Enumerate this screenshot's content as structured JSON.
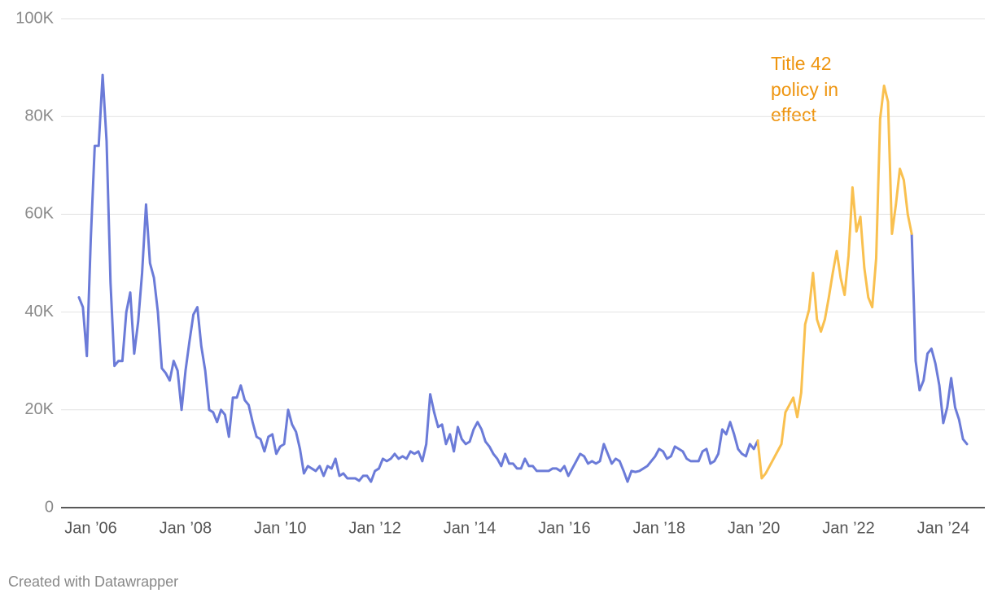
{
  "chart_data": {
    "type": "line",
    "annotation": [
      "Title 42",
      "policy in",
      "effect"
    ],
    "footer": "Created with Datawrapper",
    "x": [
      "2005-10",
      "2005-11",
      "2005-12",
      "2006-01",
      "2006-02",
      "2006-03",
      "2006-04",
      "2006-05",
      "2006-06",
      "2006-07",
      "2006-08",
      "2006-09",
      "2006-10",
      "2006-11",
      "2006-12",
      "2007-01",
      "2007-02",
      "2007-03",
      "2007-04",
      "2007-05",
      "2007-06",
      "2007-07",
      "2007-08",
      "2007-09",
      "2007-10",
      "2007-11",
      "2007-12",
      "2008-01",
      "2008-02",
      "2008-03",
      "2008-04",
      "2008-05",
      "2008-06",
      "2008-07",
      "2008-08",
      "2008-09",
      "2008-10",
      "2008-11",
      "2008-12",
      "2009-01",
      "2009-02",
      "2009-03",
      "2009-04",
      "2009-05",
      "2009-06",
      "2009-07",
      "2009-08",
      "2009-09",
      "2009-10",
      "2009-11",
      "2009-12",
      "2010-01",
      "2010-02",
      "2010-03",
      "2010-04",
      "2010-05",
      "2010-06",
      "2010-07",
      "2010-08",
      "2010-09",
      "2010-10",
      "2010-11",
      "2010-12",
      "2011-01",
      "2011-02",
      "2011-03",
      "2011-04",
      "2011-05",
      "2011-06",
      "2011-07",
      "2011-08",
      "2011-09",
      "2011-10",
      "2011-11",
      "2011-12",
      "2012-01",
      "2012-02",
      "2012-03",
      "2012-04",
      "2012-05",
      "2012-06",
      "2012-07",
      "2012-08",
      "2012-09",
      "2012-10",
      "2012-11",
      "2012-12",
      "2013-01",
      "2013-02",
      "2013-03",
      "2013-04",
      "2013-05",
      "2013-06",
      "2013-07",
      "2013-08",
      "2013-09",
      "2013-10",
      "2013-11",
      "2013-12",
      "2014-01",
      "2014-02",
      "2014-03",
      "2014-04",
      "2014-05",
      "2014-06",
      "2014-07",
      "2014-08",
      "2014-09",
      "2014-10",
      "2014-11",
      "2014-12",
      "2015-01",
      "2015-02",
      "2015-03",
      "2015-04",
      "2015-05",
      "2015-06",
      "2015-07",
      "2015-08",
      "2015-09",
      "2015-10",
      "2015-11",
      "2015-12",
      "2016-01",
      "2016-02",
      "2016-03",
      "2016-04",
      "2016-05",
      "2016-06",
      "2016-07",
      "2016-08",
      "2016-09",
      "2016-10",
      "2016-11",
      "2016-12",
      "2017-01",
      "2017-02",
      "2017-03",
      "2017-04",
      "2017-05",
      "2017-06",
      "2017-07",
      "2017-08",
      "2017-09",
      "2017-10",
      "2017-11",
      "2017-12",
      "2018-01",
      "2018-02",
      "2018-03",
      "2018-04",
      "2018-05",
      "2018-06",
      "2018-07",
      "2018-08",
      "2018-09",
      "2018-10",
      "2018-11",
      "2018-12",
      "2019-01",
      "2019-02",
      "2019-03",
      "2019-04",
      "2019-05",
      "2019-06",
      "2019-07",
      "2019-08",
      "2019-09",
      "2019-10",
      "2019-11",
      "2019-12",
      "2020-01",
      "2020-02",
      "2020-03",
      "2020-04",
      "2020-05",
      "2020-06",
      "2020-07",
      "2020-08",
      "2020-09",
      "2020-10",
      "2020-11",
      "2020-12",
      "2021-01",
      "2021-02",
      "2021-03",
      "2021-04",
      "2021-05",
      "2021-06",
      "2021-07",
      "2021-08",
      "2021-09",
      "2021-10",
      "2021-11",
      "2021-12",
      "2022-01",
      "2022-02",
      "2022-03",
      "2022-04",
      "2022-05",
      "2022-06",
      "2022-07",
      "2022-08",
      "2022-09",
      "2022-10",
      "2022-11",
      "2022-12",
      "2023-01",
      "2023-02",
      "2023-03",
      "2023-04",
      "2023-05",
      "2023-06",
      "2023-07",
      "2023-08",
      "2023-09",
      "2023-10",
      "2023-11",
      "2023-12",
      "2024-01",
      "2024-02",
      "2024-03",
      "2024-04",
      "2024-05",
      "2024-06",
      "2024-07"
    ],
    "series": [
      {
        "color": "#6b7bd8",
        "values": [
          43000,
          41000,
          31000,
          55000,
          74000,
          74000,
          88500,
          75000,
          46000,
          29000,
          30000,
          30000,
          40000,
          44000,
          31500,
          38000,
          48000,
          62000,
          50000,
          47000,
          40000,
          28500,
          27500,
          26000,
          30000,
          28000,
          20000,
          28000,
          34000,
          39500,
          41000,
          33000,
          28000,
          20000,
          19500,
          17500,
          20000,
          19000,
          14500,
          22500,
          22500,
          25000,
          22000,
          21000,
          17500,
          14500,
          14000,
          11500,
          14500,
          15000,
          11000,
          12500,
          13000,
          20000,
          17000,
          15500,
          12000,
          7000,
          8500,
          8000,
          7500,
          8500,
          6500,
          8500,
          8000,
          10000,
          6500,
          7000,
          6000,
          6000,
          6000,
          5500,
          6500,
          6500,
          5300,
          7500,
          8000,
          10000,
          9500,
          10000,
          11000,
          10000,
          10500,
          10000,
          11500,
          11000,
          11500,
          9500,
          13000,
          23200,
          19500,
          16500,
          17000,
          13000,
          15000,
          11500,
          16500,
          14000,
          13000,
          13500,
          16000,
          17500,
          16000,
          13500,
          12500,
          11000,
          10000,
          8500,
          11000,
          9000,
          9000,
          8000,
          8000,
          10000,
          8500,
          8500,
          7500,
          7500,
          7500,
          7500,
          8000,
          8000,
          7500,
          8500,
          6500,
          8000,
          9500,
          11000,
          10500,
          9000,
          9500,
          9000,
          9500,
          13000,
          11000,
          9000,
          10000,
          9500,
          7500,
          5300,
          7500,
          7300,
          7500,
          8000,
          8500,
          9500,
          10500,
          12000,
          11500,
          10000,
          10500,
          12500,
          12000,
          11500,
          10000,
          9500,
          9500,
          9500,
          11500,
          12000,
          9000,
          9500,
          11000,
          16000,
          15000,
          17500,
          15000,
          12000,
          11000,
          10500,
          13000,
          12000,
          13700,
          null,
          null,
          null,
          null,
          null,
          null,
          null,
          null,
          null,
          null,
          null,
          null,
          null,
          null,
          null,
          null,
          null,
          null,
          null,
          null,
          null,
          null,
          null,
          null,
          null,
          null,
          null,
          null,
          null,
          null,
          null,
          null,
          null,
          null,
          null,
          null,
          null,
          null,
          56000,
          30000,
          24000,
          26000,
          31500,
          32500,
          29500,
          25000,
          17300,
          20500,
          26500,
          20500,
          18000,
          14000,
          13000
        ]
      },
      {
        "color": "#f9c04f",
        "values": [
          null,
          null,
          null,
          null,
          null,
          null,
          null,
          null,
          null,
          null,
          null,
          null,
          null,
          null,
          null,
          null,
          null,
          null,
          null,
          null,
          null,
          null,
          null,
          null,
          null,
          null,
          null,
          null,
          null,
          null,
          null,
          null,
          null,
          null,
          null,
          null,
          null,
          null,
          null,
          null,
          null,
          null,
          null,
          null,
          null,
          null,
          null,
          null,
          null,
          null,
          null,
          null,
          null,
          null,
          null,
          null,
          null,
          null,
          null,
          null,
          null,
          null,
          null,
          null,
          null,
          null,
          null,
          null,
          null,
          null,
          null,
          null,
          null,
          null,
          null,
          null,
          null,
          null,
          null,
          null,
          null,
          null,
          null,
          null,
          null,
          null,
          null,
          null,
          null,
          null,
          null,
          null,
          null,
          null,
          null,
          null,
          null,
          null,
          null,
          null,
          null,
          null,
          null,
          null,
          null,
          null,
          null,
          null,
          null,
          null,
          null,
          null,
          null,
          null,
          null,
          null,
          null,
          null,
          null,
          null,
          null,
          null,
          null,
          null,
          null,
          null,
          null,
          null,
          null,
          null,
          null,
          null,
          null,
          null,
          null,
          null,
          null,
          null,
          null,
          null,
          null,
          null,
          null,
          null,
          null,
          null,
          null,
          null,
          null,
          null,
          null,
          null,
          null,
          null,
          null,
          null,
          null,
          null,
          null,
          null,
          null,
          null,
          null,
          null,
          null,
          null,
          null,
          null,
          null,
          null,
          null,
          null,
          13700,
          6000,
          7000,
          8500,
          10000,
          11500,
          13000,
          19500,
          21000,
          22500,
          18500,
          23500,
          37500,
          40500,
          48000,
          38500,
          36000,
          38500,
          43000,
          48000,
          52500,
          47000,
          43500,
          51500,
          65500,
          56500,
          59500,
          49000,
          43000,
          41000,
          51000,
          79500,
          86300,
          83000,
          56000,
          62000,
          69300,
          67000,
          60000,
          56000,
          null,
          null,
          null,
          null,
          null,
          null,
          null,
          null,
          null,
          null,
          null,
          null,
          null,
          null
        ]
      }
    ],
    "xlim": [
      "2005-10",
      "2024-07"
    ],
    "xticks": [
      {
        "value": "2006-01",
        "label": "Jan ’06"
      },
      {
        "value": "2008-01",
        "label": "Jan ’08"
      },
      {
        "value": "2010-01",
        "label": "Jan ’10"
      },
      {
        "value": "2012-01",
        "label": "Jan ’12"
      },
      {
        "value": "2014-01",
        "label": "Jan ’14"
      },
      {
        "value": "2016-01",
        "label": "Jan ’16"
      },
      {
        "value": "2018-01",
        "label": "Jan ’18"
      },
      {
        "value": "2020-01",
        "label": "Jan ’20"
      },
      {
        "value": "2022-01",
        "label": "Jan ’22"
      },
      {
        "value": "2024-01",
        "label": "Jan ’24"
      }
    ],
    "ylim": [
      0,
      100000
    ],
    "yticks": [
      0,
      {
        "value": 20000,
        "label": "20K"
      },
      {
        "value": 40000,
        "label": "40K"
      },
      {
        "value": 60000,
        "label": "60K"
      },
      {
        "value": 80000,
        "label": "80K"
      },
      {
        "value": 100000,
        "label": "100K"
      }
    ],
    "grid": true
  }
}
